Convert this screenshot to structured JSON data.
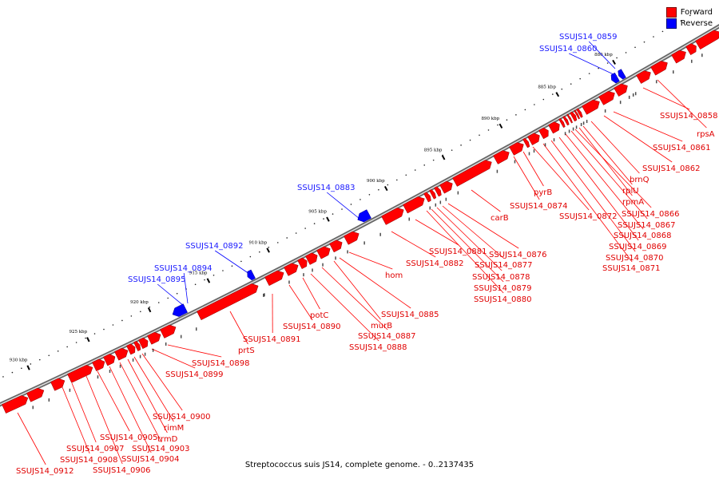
{
  "legend": {
    "forward": {
      "label": "Forward",
      "color": "#ff0000"
    },
    "reverse": {
      "label": "Reverse",
      "color": "#0000ff"
    }
  },
  "caption": "Streptococcus suis JS14, complete genome. - 0..2137435",
  "kbp_ticks": [
    "930 kbp",
    "925 kbp",
    "920 kbp",
    "915 kbp",
    "910 kbp",
    "905 kbp",
    "900 kbp",
    "895 kbp",
    "890 kbp",
    "885 kbp",
    "880 kbp"
  ],
  "genes_forward": [
    "SSUJS14_0858",
    "rpsA",
    "SSUJS14_0861",
    "SSUJS14_0862",
    "brnQ",
    "rplU",
    "rpmA",
    "SSUJS14_0866",
    "SSUJS14_0867",
    "SSUJS14_0868",
    "SSUJS14_0869",
    "SSUJS14_0870",
    "SSUJS14_0871",
    "SSUJS14_0872",
    "pyrB",
    "SSUJS14_0874",
    "carB",
    "SSUJS14_0876",
    "SSUJS14_0877",
    "SSUJS14_0878",
    "SSUJS14_0879",
    "SSUJS14_0880",
    "SSUJS14_0881",
    "SSUJS14_0882",
    "hom",
    "SSUJS14_0885",
    "murB",
    "SSUJS14_0887",
    "SSUJS14_0888",
    "potC",
    "SSUJS14_0890",
    "SSUJS14_0891",
    "prtS",
    "SSUJS14_0898",
    "SSUJS14_0899",
    "SSUJS14_0900",
    "rimM",
    "trmD",
    "SSUJS14_0903",
    "SSUJS14_0904",
    "SSUJS14_0905",
    "SSUJS14_0906",
    "SSUJS14_0907",
    "SSUJS14_0908",
    "SSUJS14_0912"
  ],
  "genes_reverse": [
    "SSUJS14_0859",
    "SSUJS14_0860",
    "SSUJS14_0883",
    "SSUJS14_0892",
    "SSUJS14_0894",
    "SSUJS14_0895"
  ]
}
